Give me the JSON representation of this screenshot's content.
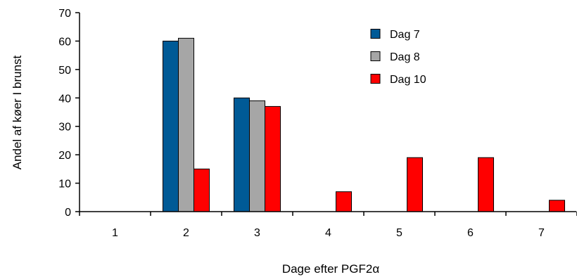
{
  "chart_data": {
    "type": "bar",
    "xlabel": "Dage efter PGF2α",
    "ylabel": "Andel af køer I brunst",
    "categories": [
      "1",
      "2",
      "3",
      "4",
      "5",
      "6",
      "7"
    ],
    "ylim": [
      0,
      70
    ],
    "yticks": [
      "0",
      "10",
      "20",
      "30",
      "40",
      "50",
      "60",
      "70"
    ],
    "grid": false,
    "legend_position": "top-right",
    "series": [
      {
        "name": "Dag 7",
        "color": "#005a96",
        "values": [
          0,
          60,
          40,
          0,
          0,
          0,
          0
        ]
      },
      {
        "name": "Dag 8",
        "color": "#a6a6a6",
        "values": [
          0,
          61,
          39,
          0,
          0,
          0,
          0
        ]
      },
      {
        "name": "Dag 10",
        "color": "#ff0000",
        "values": [
          0,
          15,
          37,
          7,
          19,
          19,
          4
        ]
      }
    ]
  }
}
